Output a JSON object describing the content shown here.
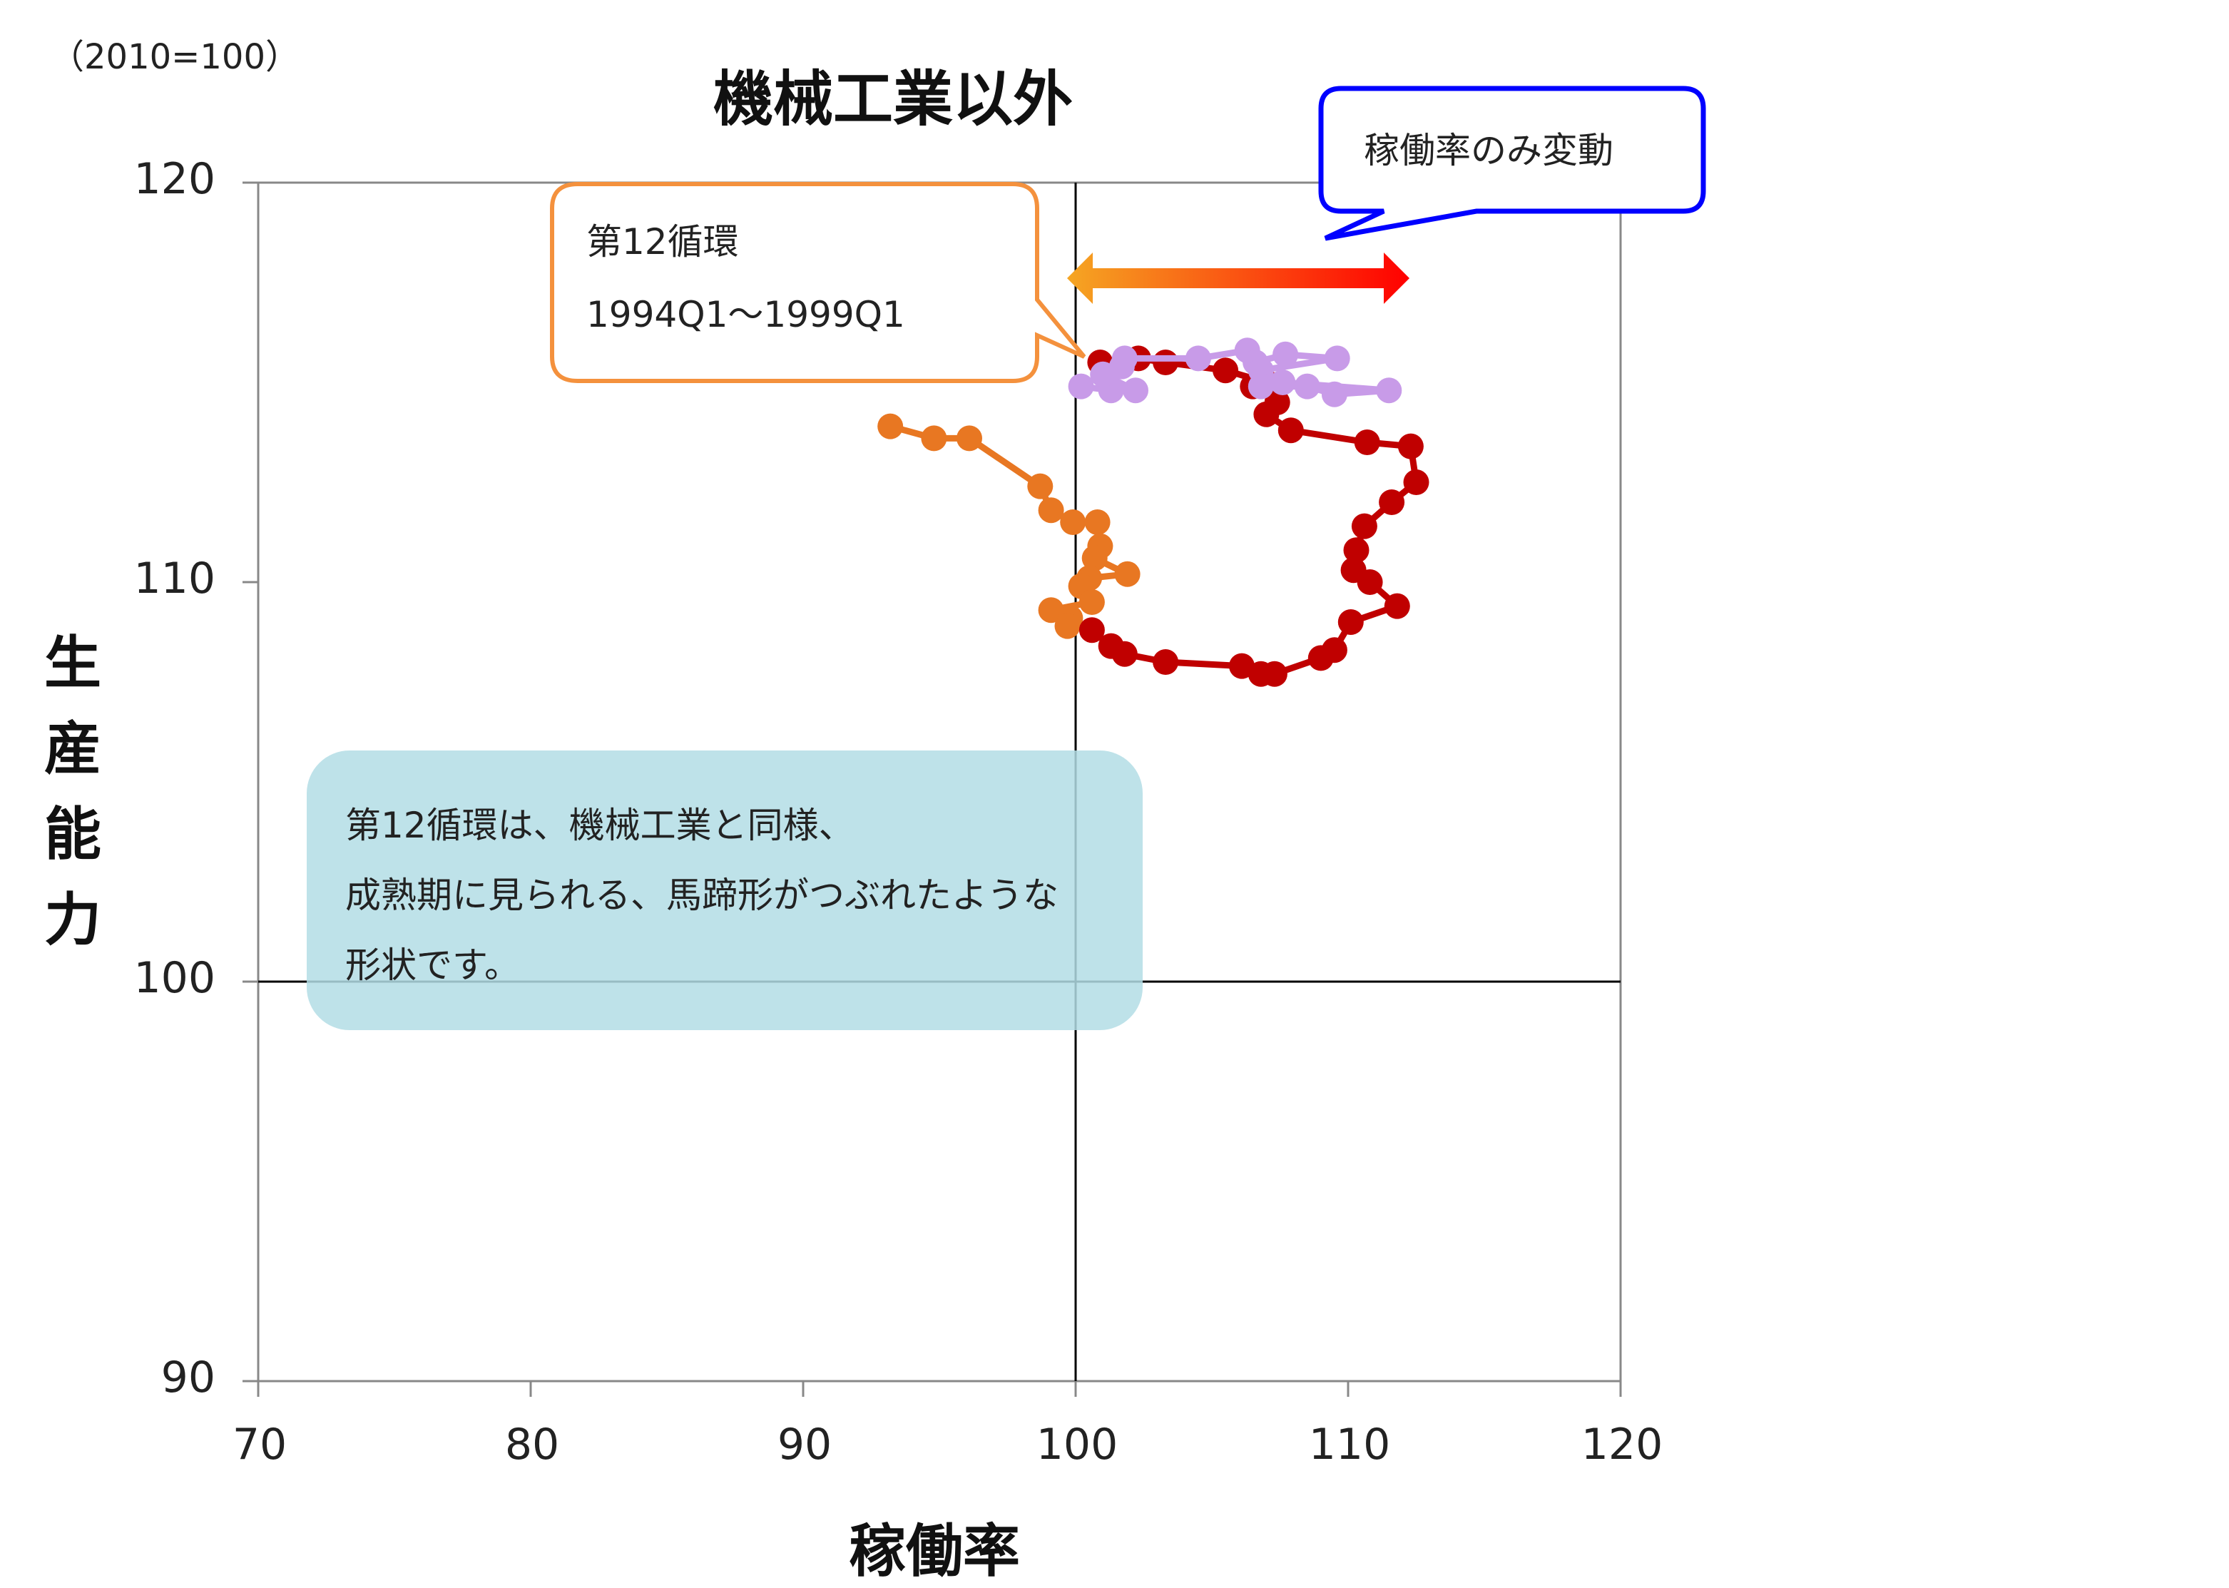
{
  "base_note": "（2010=100）",
  "chart_data": {
    "type": "scatter",
    "title": "機械工業以外",
    "xlabel": "稼働率",
    "ylabel": "生産能力",
    "xlim": [
      70,
      120
    ],
    "ylim": [
      90,
      120
    ],
    "x_ticks": [
      "70",
      "80",
      "90",
      "100",
      "110",
      "120"
    ],
    "y_ticks": [
      "90",
      "100",
      "110",
      "120"
    ],
    "reference_lines": {
      "x": 100,
      "y": 100
    },
    "series": [
      {
        "color": "#E87722",
        "points": [
          [
            93.2,
            113.9
          ],
          [
            94.8,
            113.6
          ],
          [
            96.1,
            113.6
          ],
          [
            98.7,
            112.4
          ],
          [
            99.1,
            111.8
          ],
          [
            99.9,
            111.5
          ],
          [
            100.8,
            111.5
          ],
          [
            100.9,
            110.9
          ],
          [
            100.7,
            110.6
          ],
          [
            101.9,
            110.2
          ],
          [
            100.5,
            110.1
          ],
          [
            100.2,
            109.9
          ],
          [
            100.6,
            109.5
          ],
          [
            99.1,
            109.3
          ],
          [
            99.8,
            109.1
          ],
          [
            99.7,
            108.9
          ]
        ]
      },
      {
        "color": "#C00000",
        "points": [
          [
            100.6,
            108.8
          ],
          [
            101.3,
            108.4
          ],
          [
            101.8,
            108.2
          ],
          [
            103.3,
            108.0
          ],
          [
            106.1,
            107.9
          ],
          [
            106.8,
            107.7
          ],
          [
            107.3,
            107.7
          ],
          [
            109.0,
            108.1
          ],
          [
            109.5,
            108.3
          ],
          [
            110.1,
            109.0
          ],
          [
            111.8,
            109.4
          ],
          [
            110.8,
            110.0
          ],
          [
            110.2,
            110.3
          ],
          [
            110.3,
            110.8
          ],
          [
            110.6,
            111.4
          ],
          [
            111.6,
            112.0
          ],
          [
            112.5,
            112.5
          ],
          [
            112.3,
            113.4
          ],
          [
            110.7,
            113.5
          ],
          [
            107.9,
            113.8
          ],
          [
            107.0,
            114.2
          ],
          [
            107.4,
            114.5
          ],
          [
            106.5,
            114.9
          ],
          [
            107.0,
            115.0
          ],
          [
            105.5,
            115.3
          ],
          [
            103.3,
            115.5
          ],
          [
            102.3,
            115.6
          ],
          [
            100.9,
            115.5
          ]
        ]
      },
      {
        "color": "#C89BE8",
        "points": [
          [
            100.2,
            114.9
          ],
          [
            101.3,
            114.8
          ],
          [
            102.2,
            114.8
          ],
          [
            101.0,
            115.2
          ],
          [
            101.7,
            115.4
          ],
          [
            101.8,
            115.6
          ],
          [
            104.5,
            115.6
          ],
          [
            106.3,
            115.8
          ],
          [
            106.6,
            115.5
          ],
          [
            107.7,
            115.7
          ],
          [
            109.6,
            115.6
          ],
          [
            106.8,
            115.3
          ],
          [
            106.8,
            114.9
          ],
          [
            108.5,
            114.9
          ],
          [
            109.5,
            114.7
          ],
          [
            111.5,
            114.8
          ],
          [
            107.6,
            115.0
          ]
        ]
      }
    ]
  },
  "callouts": {
    "cycle": {
      "line1": "第12循環",
      "line2": "1994Q1～1999Q1",
      "border_color": "#F4913D"
    },
    "movement": {
      "text": "稼働率のみ変動",
      "border_color": "#0000FF"
    }
  },
  "arrow": {
    "color_start": "#F5A623",
    "color_end": "#FF0000"
  },
  "note": {
    "line1": "第12循環は、機械工業と同様、",
    "line2": "成熟期に見られる、馬蹄形がつぶれたような",
    "line3": "形状です。",
    "background": "#B3DDE5"
  }
}
